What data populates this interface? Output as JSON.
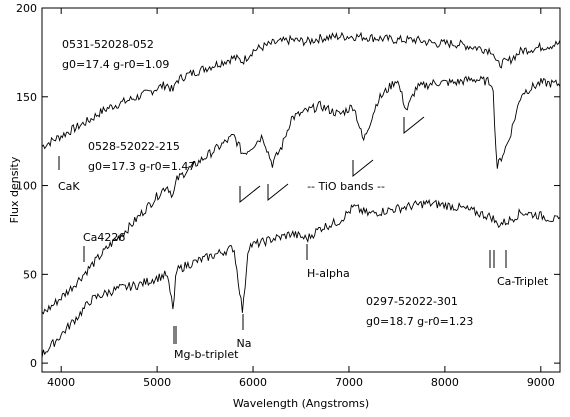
{
  "chart_data": {
    "type": "line",
    "title": "",
    "xlabel": "Wavelength (Angstroms)",
    "ylabel": "Flux density",
    "xlim": [
      3800,
      9200
    ],
    "ylim": [
      -5,
      200
    ],
    "xticks": [
      4000,
      5000,
      6000,
      7000,
      8000,
      9000
    ],
    "yticks": [
      0,
      50,
      100,
      150,
      200
    ],
    "grid": false,
    "legend": "none",
    "color": "#000000",
    "series": [
      {
        "name": "0531-52028-052",
        "label_lines": [
          "0531-52028-052",
          "g0=17.4 g-r0=1.09"
        ],
        "x": [
          3800,
          3900,
          4000,
          4100,
          4200,
          4300,
          4400,
          4500,
          4600,
          4700,
          4800,
          4900,
          5000,
          5100,
          5170,
          5200,
          5300,
          5400,
          5500,
          5600,
          5700,
          5800,
          5893,
          6000,
          6200,
          6400,
          6563,
          6700,
          6900,
          7100,
          7300,
          7500,
          7700,
          7900,
          8100,
          8300,
          8498,
          8542,
          8662,
          8800,
          9000,
          9200
        ],
        "y": [
          122,
          125,
          128,
          131,
          134,
          137,
          141,
          144,
          146,
          148,
          150,
          152,
          155,
          157,
          153,
          159,
          162,
          164,
          166,
          168,
          170,
          172,
          170,
          176,
          180,
          182,
          181,
          183,
          184,
          184,
          183,
          182,
          182,
          180,
          180,
          178,
          176,
          168,
          170,
          176,
          178,
          180
        ]
      },
      {
        "name": "0528-52022-215",
        "label_lines": [
          "0528-52022-215",
          "g0=17.3 g-r0=1.47"
        ],
        "x": [
          3800,
          3900,
          4000,
          4100,
          4200,
          4300,
          4400,
          4500,
          4600,
          4700,
          4800,
          4900,
          5000,
          5100,
          5170,
          5200,
          5300,
          5400,
          5500,
          5600,
          5700,
          5800,
          5893,
          5950,
          6100,
          6200,
          6300,
          6400,
          6563,
          6700,
          6900,
          7050,
          7150,
          7300,
          7500,
          7600,
          7700,
          7900,
          8100,
          8300,
          8498,
          8542,
          8662,
          8800,
          9000,
          9200
        ],
        "y": [
          28,
          32,
          37,
          42,
          48,
          54,
          60,
          66,
          71,
          76,
          82,
          88,
          94,
          100,
          94,
          103,
          108,
          112,
          116,
          120,
          124,
          128,
          118,
          120,
          128,
          112,
          122,
          138,
          142,
          145,
          140,
          145,
          125,
          148,
          160,
          142,
          155,
          158,
          158,
          160,
          158,
          110,
          125,
          152,
          158,
          157
        ]
      },
      {
        "name": "0297-52022-301",
        "label_lines": [
          "0297-52022-301",
          "g0=18.7 g-r0=1.23"
        ],
        "x": [
          3800,
          3900,
          4000,
          4100,
          4200,
          4300,
          4400,
          4500,
          4600,
          4700,
          4800,
          4900,
          5000,
          5100,
          5170,
          5200,
          5300,
          5400,
          5500,
          5600,
          5700,
          5800,
          5893,
          5950,
          6100,
          6200,
          6300,
          6400,
          6563,
          6700,
          6900,
          7050,
          7200,
          7400,
          7600,
          7800,
          8000,
          8200,
          8498,
          8542,
          8662,
          8800,
          9000,
          9200
        ],
        "y": [
          5,
          10,
          16,
          22,
          28,
          35,
          38,
          40,
          42,
          43,
          44,
          46,
          48,
          50,
          30,
          52,
          55,
          57,
          59,
          61,
          63,
          65,
          28,
          66,
          68,
          70,
          71,
          73,
          70,
          76,
          80,
          88,
          84,
          86,
          88,
          90,
          89,
          87,
          82,
          78,
          80,
          85,
          83,
          80
        ]
      }
    ],
    "annotations": [
      {
        "text": "CaK",
        "x": 3934,
        "y": 111
      },
      {
        "text": "Ca4226",
        "x": 4226,
        "y": 74
      },
      {
        "text": "Mg-b-triplet",
        "x": 5175,
        "y": -3
      },
      {
        "text": "Na",
        "x": 5893,
        "y": 3
      },
      {
        "text": "TiO bands",
        "x": 7000,
        "y": 100
      },
      {
        "text": "H-alpha",
        "x": 6563,
        "y": 46
      },
      {
        "text": "Ca-Triplet",
        "x": 8600,
        "y": 40
      }
    ]
  }
}
